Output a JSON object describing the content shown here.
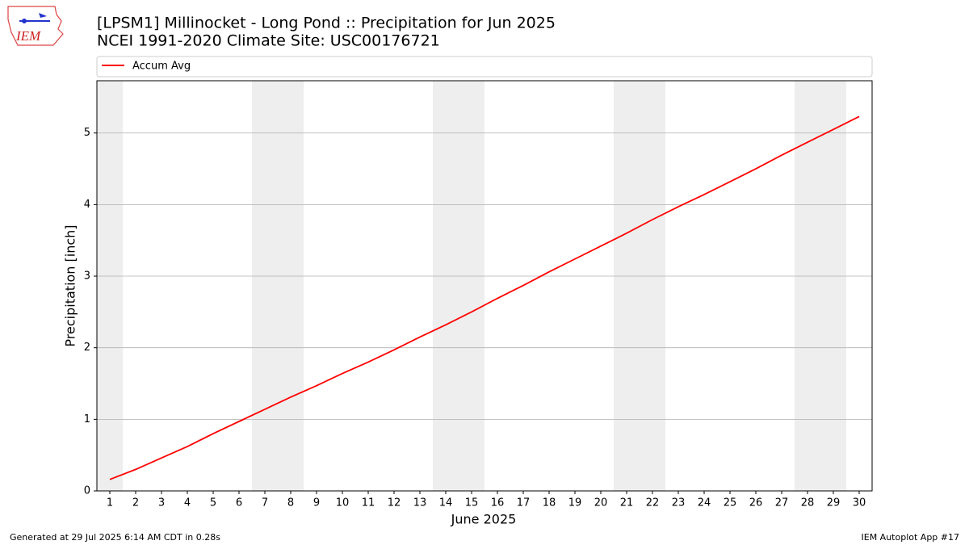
{
  "logo_text": "IEM",
  "footer": {
    "left": "Generated at 29 Jul 2025 6:14 AM CDT in 0.28s",
    "right": "IEM Autoplot App #17"
  },
  "chart_data": {
    "type": "line",
    "title": "[LPSM1] Millinocket - Long Pond :: Precipitation for Jun 2025",
    "subtitle": "NCEI 1991-2020 Climate Site: USC00176721",
    "xlabel": "June 2025",
    "ylabel": "Precipitation [inch]",
    "x": [
      1,
      2,
      3,
      4,
      5,
      6,
      7,
      8,
      9,
      10,
      11,
      12,
      13,
      14,
      15,
      16,
      17,
      18,
      19,
      20,
      21,
      22,
      23,
      24,
      25,
      26,
      27,
      28,
      29,
      30
    ],
    "series": [
      {
        "name": "Accum Avg",
        "color": "#ff0000",
        "values": [
          0.16,
          0.3,
          0.46,
          0.62,
          0.8,
          0.97,
          1.14,
          1.31,
          1.47,
          1.64,
          1.8,
          1.97,
          2.15,
          2.32,
          2.5,
          2.69,
          2.87,
          3.06,
          3.24,
          3.42,
          3.6,
          3.79,
          3.97,
          4.14,
          4.32,
          4.5,
          4.69,
          4.87,
          5.05,
          5.23
        ]
      }
    ],
    "shaded_x": [
      1,
      7,
      8,
      14,
      15,
      21,
      22,
      28,
      29
    ],
    "shade_color": "#eeeeee",
    "xlim": [
      0.5,
      30.5
    ],
    "xticks": [
      1,
      2,
      3,
      4,
      5,
      6,
      7,
      8,
      9,
      10,
      11,
      12,
      13,
      14,
      15,
      16,
      17,
      18,
      19,
      20,
      21,
      22,
      23,
      24,
      25,
      26,
      27,
      28,
      29,
      30
    ],
    "ylim": [
      0,
      5.73
    ],
    "yticks": [
      0,
      1,
      2,
      3,
      4,
      5
    ],
    "grid": true,
    "legend": "top"
  }
}
